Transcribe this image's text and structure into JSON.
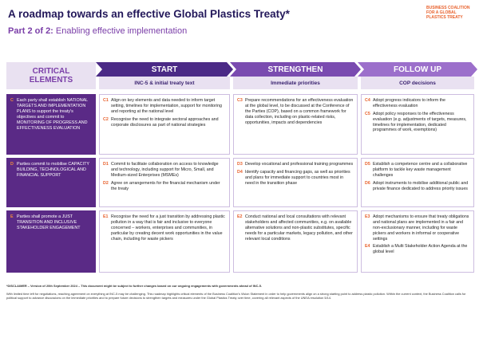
{
  "header": {
    "title": "A roadmap towards an effective Global Plastics Treaty*",
    "subtitle_lead": "Part 2 of 2:",
    "subtitle": "Enabling effective implementation",
    "logo": "BUSINESS COALITION FOR A GLOBAL PLASTICS TREATY"
  },
  "columns": [
    {
      "title": "CRITICAL ELEMENTS"
    },
    {
      "title": "START",
      "subtitle": "INC-5 & initial treaty text"
    },
    {
      "title": "STRENGTHEN",
      "subtitle": "Immediate priorities"
    },
    {
      "title": "FOLLOW UP",
      "subtitle": "COP decisions"
    }
  ],
  "rows": [
    {
      "letter": "C",
      "element": "Each party shall establish NATIONAL TARGETS AND IMPLEMENTATION PLANS to support the treaty's objectives and commit to MONITORING OF PROGRESS AND EFFECTIVENESS EVALUATION",
      "cells": [
        [
          {
            "id": "C1",
            "text": "Align on key elements and data needed to inform target setting, timelines for implementation, support for monitoring and reporting at the national level"
          },
          {
            "id": "C2",
            "text": "Recognise the need to integrate sectoral approaches and corporate disclosures as part of national strategies"
          }
        ],
        [
          {
            "id": "C3",
            "text": "Prepare recommendations for an effectiveness evaluation at the global level, to be discussed at the Conference of the Parties (COP), based on a common framework for data collection, including on plastic-related risks, opportunities, impacts and dependencies"
          }
        ],
        [
          {
            "id": "C4",
            "text": "Adopt progress indicators to inform the effectiveness evaluation"
          },
          {
            "id": "C5",
            "text": "Adopt policy responses to the effectiveness evaluation (e.g. adjustments of targets, measures, timelines for implementation, dedicated programmes of work, exemptions)"
          }
        ]
      ]
    },
    {
      "letter": "D",
      "element": "Parties commit to mobilise CAPACITY BUILDING, TECHNOLOGICAL AND FINANCIAL SUPPORT",
      "cells": [
        [
          {
            "id": "D1",
            "text": "Commit to facilitate collaboration on access to knowledge and technology, including support for Micro, Small, and Medium-sized Enterprises (MSMEs)"
          },
          {
            "id": "D2",
            "text": "Agree on arrangements for the financial mechanism under the treaty"
          }
        ],
        [
          {
            "id": "D3",
            "text": "Develop vocational and professional training programmes"
          },
          {
            "id": "D4",
            "text": "Identify capacity and financing gaps, as well as priorities and plans for immediate support to countries most in need in the transition phase"
          }
        ],
        [
          {
            "id": "D5",
            "text": "Establish a competence centre and a collaborative platform to tackle key waste management challenges"
          },
          {
            "id": "D6",
            "text": "Adopt instruments to mobilise additional public and private finance dedicated to address priority issues"
          }
        ]
      ]
    },
    {
      "letter": "E",
      "element": "Parties shall promote a JUST TRANSITION AND INCLUSIVE STAKEHOLDER ENGAGEMENT",
      "cells": [
        [
          {
            "id": "E1",
            "text": "Recognise the need for a just transition by addressing plastic pollution in a way that is fair and inclusive to everyone concerned – workers, enterprises and communities, in particular by creating decent work opportunities in the value chain, including for waste pickers"
          }
        ],
        [
          {
            "id": "E2",
            "text": "Conduct national and local consultations with relevant stakeholders and affected communities, e.g. on available alternative solutions and non-plastic substitutes, specific needs for a particular markets, legacy pollution, and other relevant local conditions"
          }
        ],
        [
          {
            "id": "E3",
            "text": "Adopt mechanisms to ensure that treaty obligations and national plans are implemented in a fair and non-exclusionary manner, including for waste pickers and workers in informal or cooperative settings"
          },
          {
            "id": "E4",
            "text": "Establish a Multi Stakeholder Action Agenda at the global level"
          }
        ]
      ]
    }
  ],
  "footnote": {
    "disclaimer": "*DISCLAIMER – Version of 20th September 2024 – This document might be subject to further changes based on our ongoing engagements with governments ahead of INC-5.",
    "body": "With limited time left for negotiations, reaching agreement on everything at INC-5 may be challenging. This roadmap highlights critical elements of the Business Coalition's Vision Statement in order to help governments align on a strong starting point to address plastic pollution. Within the current context, the Business Coalition calls for political support to advance discussions on the immediate priorities and to prepare future decisions to strengthen targets and measures under the Global Plastics Treaty over time, covering all relevant aspects of the UNEA resolution 5/14."
  }
}
